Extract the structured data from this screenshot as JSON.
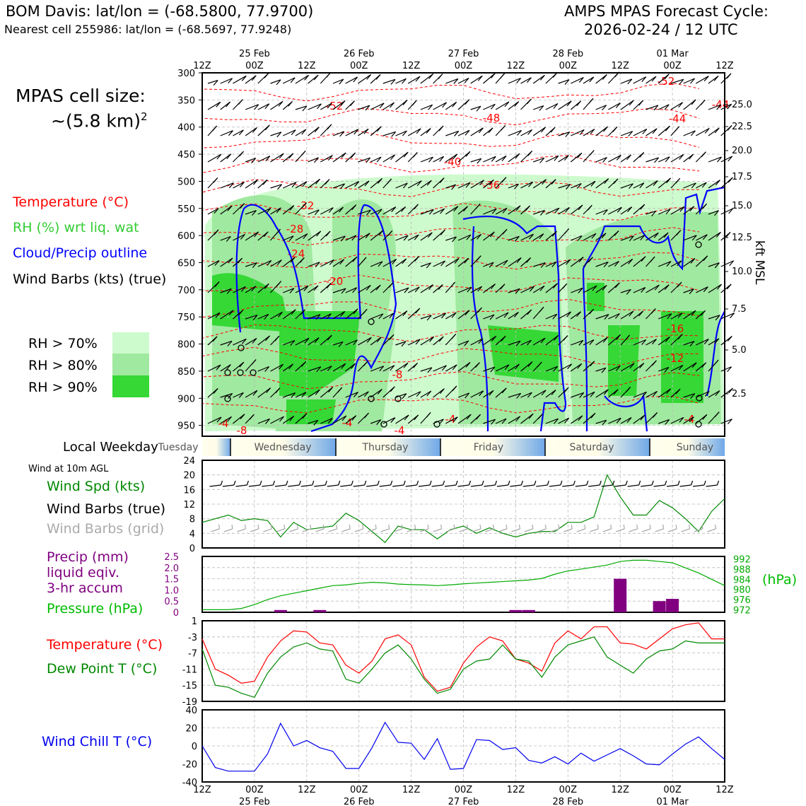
{
  "header": {
    "station": "BOM Davis: lat/lon = (-68.5800, 77.9700)",
    "nearest": "Nearest cell 255986: lat/lon = (-68.5697, 77.9248)",
    "model": "AMPS MPAS Forecast Cycle:",
    "cycle": "2026-02-24 / 12 UTC"
  },
  "legend": {
    "cell_size_1": "MPAS cell size:",
    "cell_size_2": "~(5.8 km)",
    "cell_size_sup": "2",
    "temperature": "Temperature (°C)",
    "rh": "RH (%) wrt liq. wat",
    "cloud": "Cloud/Precip outline",
    "barbs": "Wind Barbs (kts) (true)",
    "rh70": "RH > 70%",
    "rh80": "RH > 80%",
    "rh90": "RH > 90%",
    "rh_colors": [
      "#cdfbcd",
      "#a0e9a0",
      "#35d835"
    ],
    "local_weekday": "Local Weekday",
    "wind10m": "Wind at 10m AGL",
    "wind_spd": "Wind Spd (kts)",
    "wind_barbs_true": "Wind Barbs (true)",
    "wind_barbs_grid": "Wind Barbs (grid)",
    "precip_1": "Precip (mm)",
    "precip_2": "liquid eqiv.",
    "precip_3": "3-hr accum",
    "pressure": "Pressure (hPa)",
    "hpa": "(hPa)",
    "temp2": "Temperature (°C)",
    "dew": "Dew Point T (°C)",
    "windchill": "Wind Chill T (°C)",
    "kft": "kft MSL"
  },
  "chart_data": [
    {
      "type": "heatmap",
      "name": "time-height cross section",
      "x_ticks_top": [
        "12Z",
        "00Z",
        "12Z",
        "00Z",
        "12Z",
        "00Z",
        "12Z",
        "00Z",
        "12Z",
        "00Z",
        "12Z"
      ],
      "x_dates": [
        "25 Feb",
        "26 Feb",
        "27 Feb",
        "28 Feb",
        "01 Mar"
      ],
      "y_pressure_ticks": [
        300,
        350,
        400,
        450,
        500,
        550,
        600,
        650,
        700,
        750,
        800,
        850,
        900,
        950
      ],
      "y_kft_ticks": [
        "25.0",
        "22.5",
        "20.0",
        "17.5",
        "15.0",
        "12.5",
        "10.0",
        "7.5",
        "5.0",
        "2.5"
      ],
      "temperature_labels": [
        "-52",
        "-48",
        "-44",
        "-40",
        "-36",
        "-32",
        "-28",
        "-24",
        "-20",
        "-16",
        "-12",
        "-8",
        "-4",
        "-8",
        "-4",
        "-4",
        "-4",
        "-4",
        "-52",
        "-44"
      ],
      "weekdays": [
        "Tuesday",
        "Wednesday",
        "Thursday",
        "Friday",
        "Saturday",
        "Sunday"
      ]
    },
    {
      "type": "line",
      "name": "Wind Spd (kts)",
      "yticks": [
        0,
        4,
        8,
        12,
        16,
        20,
        24
      ],
      "ylim": [
        0,
        24
      ],
      "x_hours": [
        0,
        6,
        9,
        12,
        15,
        18,
        21,
        24,
        27,
        30,
        33,
        36,
        39,
        42,
        45,
        48,
        51,
        54,
        57,
        60,
        63,
        66,
        69,
        72,
        75,
        78,
        81,
        84,
        87,
        90,
        93,
        96,
        99,
        102,
        105,
        108,
        111,
        114,
        117,
        120
      ],
      "values": [
        7,
        9,
        7.5,
        8,
        7.5,
        3,
        7,
        5,
        5.5,
        6,
        9.5,
        7.5,
        4.5,
        1.5,
        6,
        5,
        5,
        2.5,
        5,
        6,
        4,
        5.5,
        4,
        3,
        4,
        4.5,
        4.5,
        7,
        7,
        8.5,
        20,
        14,
        9,
        9,
        13,
        11,
        8,
        4.5,
        10,
        13.5
      ]
    },
    {
      "type": "bar",
      "name": "Precip (mm) / Pressure (hPa)",
      "precip_yticks": [
        "2.5",
        "2.0",
        "1.5",
        "1.0",
        "0.5",
        "0"
      ],
      "precip_ylim": [
        0,
        2.5
      ],
      "pressure_yticks": [
        992,
        988,
        984,
        980,
        976,
        972
      ],
      "pressure_ylim": [
        971,
        993
      ],
      "precip_hours": [
        18,
        27,
        72,
        75,
        96,
        105,
        108
      ],
      "precip_values": [
        0.1,
        0.1,
        0.1,
        0.1,
        1.5,
        0.5,
        0.6
      ],
      "pressure_hours": [
        0,
        6,
        9,
        12,
        15,
        18,
        21,
        24,
        27,
        30,
        33,
        36,
        39,
        42,
        45,
        48,
        51,
        54,
        57,
        60,
        63,
        66,
        69,
        72,
        75,
        78,
        81,
        84,
        87,
        90,
        93,
        96,
        99,
        102,
        105,
        108,
        111,
        114,
        117,
        120
      ],
      "pressure_values": [
        972,
        972,
        972.5,
        974,
        976,
        977.5,
        978.5,
        979.5,
        980.5,
        981.5,
        981.8,
        982.4,
        982.8,
        982.6,
        982.1,
        981.9,
        981.8,
        981.5,
        981.8,
        982.2,
        982.5,
        982.8,
        983.1,
        983.4,
        983.7,
        984.3,
        986,
        987.3,
        988,
        988.8,
        989.6,
        991,
        991.5,
        991.5,
        991,
        990.5,
        988.5,
        986.5,
        984,
        981.5
      ]
    },
    {
      "type": "line",
      "name": "Temperature / Dew Point (°C)",
      "yticks": [
        1,
        -3,
        -7,
        -11,
        -15,
        -19
      ],
      "ylim": [
        -19,
        1
      ],
      "x_hours": [
        0,
        3,
        6,
        9,
        12,
        15,
        18,
        21,
        24,
        27,
        30,
        33,
        36,
        39,
        42,
        45,
        48,
        51,
        54,
        57,
        60,
        63,
        66,
        69,
        72,
        75,
        78,
        81,
        84,
        87,
        90,
        93,
        96,
        99,
        102,
        105,
        108,
        111,
        114,
        117,
        120
      ],
      "temperature": [
        -3.5,
        -11,
        -12.5,
        -14.5,
        -14,
        -8,
        -4,
        -1.5,
        -1.8,
        -4.5,
        -5,
        -10,
        -12,
        -9,
        -3.5,
        -2.5,
        -5,
        -13,
        -16.5,
        -15.5,
        -9.5,
        -5.5,
        -3,
        -4,
        -8.5,
        -9.5,
        -11.5,
        -4.5,
        -1.5,
        -3.5,
        -0.5,
        -0.5,
        -4.5,
        -4.8,
        -6,
        -3.5,
        -1,
        0,
        0.5,
        -3.5,
        -3.5
      ],
      "dew_point": [
        -6,
        -15,
        -15.5,
        -17,
        -18,
        -12,
        -8,
        -5.5,
        -4.5,
        -6,
        -6.5,
        -13.5,
        -14.5,
        -11,
        -7,
        -5,
        -8.5,
        -13.5,
        -17,
        -16,
        -11,
        -9,
        -8.5,
        -5,
        -8.5,
        -9,
        -13,
        -8,
        -5,
        -4,
        -3,
        -8,
        -10,
        -12,
        -8.5,
        -6.5,
        -6,
        -4,
        -4.5,
        -4.5,
        -4.5
      ]
    },
    {
      "type": "line",
      "name": "Wind Chill T (°C)",
      "yticks": [
        40,
        20,
        0,
        -20,
        -40
      ],
      "ylim": [
        -40,
        40
      ],
      "x_hours": [
        0,
        3,
        6,
        9,
        12,
        15,
        18,
        21,
        24,
        27,
        30,
        33,
        36,
        39,
        42,
        45,
        48,
        51,
        54,
        57,
        60,
        63,
        66,
        69,
        72,
        75,
        78,
        81,
        84,
        87,
        90,
        93,
        96,
        99,
        102,
        105,
        108,
        111,
        114,
        117,
        120
      ],
      "values": [
        0,
        -24,
        -28,
        -28,
        -28,
        -9,
        25,
        0,
        6,
        -2,
        -6,
        -25,
        -25,
        -2,
        26,
        4,
        3,
        -15,
        8,
        -26,
        -25,
        7,
        6,
        -4,
        -2,
        -16,
        -19,
        -12,
        -20,
        -8,
        -17,
        -10,
        -3,
        -11,
        -20,
        -21,
        -9,
        2,
        10,
        -3,
        -15
      ]
    }
  ],
  "x_ticks_bottom": [
    "12Z",
    "00Z",
    "12Z",
    "00Z",
    "12Z",
    "00Z",
    "12Z",
    "00Z",
    "12Z",
    "00Z",
    "12Z"
  ],
  "x_dates_bottom": [
    "25 Feb",
    "26 Feb",
    "27 Feb",
    "28 Feb",
    "01 Mar"
  ]
}
